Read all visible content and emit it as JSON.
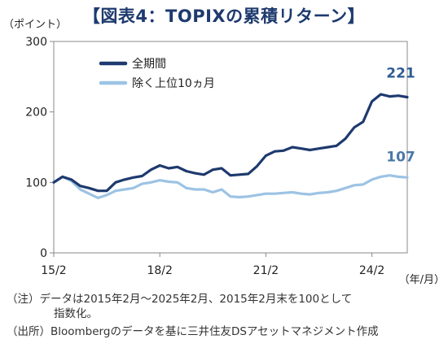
{
  "title": "【図表4：TOPIXの累積リターン】",
  "notes": {
    "line1": "（注）データは2015年2月～2025年2月、2015年2月末を100として",
    "line1_cont": "指数化。",
    "line2": "（出所）Bloombergのデータを基に三井住友DSアセットマネジメント作成"
  },
  "chart_data": {
    "type": "line",
    "ylabel": "（ポイント）",
    "xlabel": "（年/月）",
    "ylim": [
      0,
      300
    ],
    "yticks": [
      "0",
      "100",
      "200",
      "300"
    ],
    "x_range": [
      "2015-02",
      "2025-02"
    ],
    "xticks": [
      {
        "label": "15/2",
        "x": "2015-02"
      },
      {
        "label": "18/2",
        "x": "2018-02"
      },
      {
        "label": "21/2",
        "x": "2021-02"
      },
      {
        "label": "24/2",
        "x": "2024-02"
      }
    ],
    "grid": false,
    "legend": "top-left",
    "x": [
      "2015-02",
      "2015-05",
      "2015-08",
      "2015-11",
      "2016-02",
      "2016-05",
      "2016-08",
      "2016-11",
      "2017-02",
      "2017-05",
      "2017-08",
      "2017-11",
      "2018-02",
      "2018-05",
      "2018-08",
      "2018-11",
      "2019-02",
      "2019-05",
      "2019-08",
      "2019-11",
      "2020-02",
      "2020-05",
      "2020-08",
      "2020-11",
      "2021-02",
      "2021-05",
      "2021-08",
      "2021-11",
      "2022-02",
      "2022-05",
      "2022-08",
      "2022-11",
      "2023-02",
      "2023-05",
      "2023-08",
      "2023-11",
      "2024-02",
      "2024-05",
      "2024-08",
      "2024-11",
      "2025-02"
    ],
    "series": [
      {
        "name": "全期間",
        "color": "#1e3a6e",
        "end_label": "221",
        "values": [
          100,
          108,
          104,
          95,
          92,
          88,
          88,
          100,
          104,
          107,
          109,
          118,
          124,
          120,
          122,
          116,
          113,
          111,
          118,
          120,
          110,
          111,
          112,
          123,
          138,
          144,
          145,
          150,
          148,
          146,
          148,
          150,
          152,
          162,
          178,
          186,
          215,
          225,
          222,
          223,
          221
        ]
      },
      {
        "name": "除く上位10ヵ月",
        "color": "#9cc3e4",
        "end_label": "107",
        "values": [
          100,
          108,
          102,
          90,
          84,
          78,
          82,
          88,
          90,
          92,
          98,
          100,
          103,
          101,
          100,
          92,
          90,
          90,
          86,
          90,
          80,
          79,
          80,
          82,
          84,
          84,
          85,
          86,
          84,
          83,
          85,
          86,
          88,
          92,
          96,
          97,
          104,
          108,
          110,
          108,
          107
        ]
      }
    ]
  }
}
